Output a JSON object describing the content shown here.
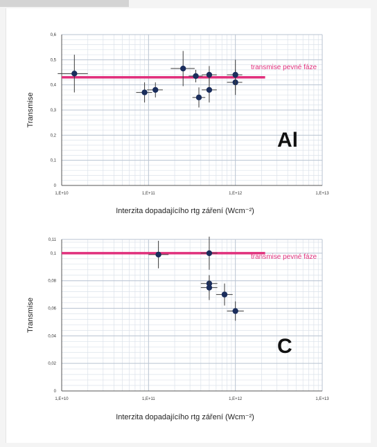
{
  "colors": {
    "point": "#1a2d5c",
    "error": "#3a3a3a",
    "ref_line": "#e0307c",
    "grid": "#b9c3d1",
    "grid_minor": "#dbe2ea"
  },
  "chart_data": [
    {
      "type": "scatter",
      "label": "Al",
      "xlabel": "Interzita dopadajícího rtg záření (Wcm⁻²)",
      "ylabel": "Transmise",
      "xscale": "log",
      "xlim": [
        10000000000.0,
        10000000000000.0
      ],
      "ylim": [
        0,
        0.6
      ],
      "xticks": [
        10000000000.0,
        100000000000.0,
        1000000000000.0,
        10000000000000.0
      ],
      "xtick_labels": [
        "1,E+10",
        "1,E+11",
        "1,E+12",
        "1,E+13"
      ],
      "yticks": [
        0,
        0.1,
        0.2,
        0.3,
        0.4,
        0.5,
        0.6
      ],
      "ytick_labels": [
        "0",
        "0,1",
        "0,2",
        "0,3",
        "0,4",
        "0,5",
        "0,6"
      ],
      "grid": true,
      "reference_line": {
        "y": 0.43,
        "x_range": [
          10000000000.0,
          2200000000000.0
        ],
        "label": "transmise pevné fáze"
      },
      "points": [
        {
          "x": 14000000000.0,
          "y": 0.445,
          "yerr": 0.075,
          "xerr_lo": 5000000000.0,
          "xerr_hi": 6000000000.0
        },
        {
          "x": 90000000000.0,
          "y": 0.37,
          "yerr": 0.04,
          "xerr_lo": 18000000000.0,
          "xerr_hi": 20000000000.0
        },
        {
          "x": 120000000000.0,
          "y": 0.38,
          "yerr": 0.03,
          "xerr_lo": 24000000000.0,
          "xerr_hi": 26000000000.0
        },
        {
          "x": 250000000000.0,
          "y": 0.465,
          "yerr": 0.07,
          "xerr_lo": 70000000000.0,
          "xerr_hi": 90000000000.0
        },
        {
          "x": 350000000000.0,
          "y": 0.435,
          "yerr": 0.025,
          "xerr_lo": 60000000000.0,
          "xerr_hi": 70000000000.0
        },
        {
          "x": 380000000000.0,
          "y": 0.35,
          "yerr": 0.04,
          "xerr_lo": 60000000000.0,
          "xerr_hi": 70000000000.0
        },
        {
          "x": 500000000000.0,
          "y": 0.44,
          "yerr": 0.035,
          "xerr_lo": 90000000000.0,
          "xerr_hi": 110000000000.0
        },
        {
          "x": 500000000000.0,
          "y": 0.38,
          "yerr": 0.05,
          "xerr_lo": 90000000000.0,
          "xerr_hi": 110000000000.0
        },
        {
          "x": 1000000000000.0,
          "y": 0.41,
          "yerr": 0.05,
          "xerr_lo": 200000000000.0,
          "xerr_hi": 200000000000.0
        },
        {
          "x": 1000000000000.0,
          "y": 0.44,
          "yerr": 0.06,
          "xerr_lo": 200000000000.0,
          "xerr_hi": 200000000000.0
        }
      ]
    },
    {
      "type": "scatter",
      "label": "C",
      "xlabel": "Interzita dopadajícího rtg záření (Wcm⁻²)",
      "ylabel": "Transmise",
      "xscale": "log",
      "xlim": [
        10000000000.0,
        10000000000000.0
      ],
      "ylim": [
        0,
        0.11
      ],
      "xticks": [
        10000000000.0,
        100000000000.0,
        1000000000000.0,
        10000000000000.0
      ],
      "xtick_labels": [
        "1,E+10",
        "1,E+11",
        "1,E+12",
        "1,E+13"
      ],
      "yticks": [
        0,
        0.02,
        0.04,
        0.06,
        0.08,
        0.1,
        0.11
      ],
      "ytick_labels": [
        "0",
        "0,02",
        "0,04",
        "0,06",
        "0,08",
        "0,1",
        "0,11"
      ],
      "grid": true,
      "reference_line": {
        "y": 0.1,
        "x_range": [
          10000000000.0,
          2200000000000.0
        ],
        "label": "transmise pevné fáze"
      },
      "points": [
        {
          "x": 130000000000.0,
          "y": 0.099,
          "yerr": 0.01,
          "xerr_lo": 30000000000.0,
          "xerr_hi": 40000000000.0
        },
        {
          "x": 500000000000.0,
          "y": 0.1,
          "yerr": 0.012,
          "xerr_lo": 100000000000.0,
          "xerr_hi": 120000000000.0
        },
        {
          "x": 500000000000.0,
          "y": 0.078,
          "yerr": 0.006,
          "xerr_lo": 100000000000.0,
          "xerr_hi": 120000000000.0
        },
        {
          "x": 500000000000.0,
          "y": 0.075,
          "yerr": 0.009,
          "xerr_lo": 100000000000.0,
          "xerr_hi": 120000000000.0
        },
        {
          "x": 750000000000.0,
          "y": 0.07,
          "yerr": 0.008,
          "xerr_lo": 150000000000.0,
          "xerr_hi": 180000000000.0
        },
        {
          "x": 1000000000000.0,
          "y": 0.058,
          "yerr": 0.007,
          "xerr_lo": 200000000000.0,
          "xerr_hi": 250000000000.0
        }
      ]
    }
  ]
}
